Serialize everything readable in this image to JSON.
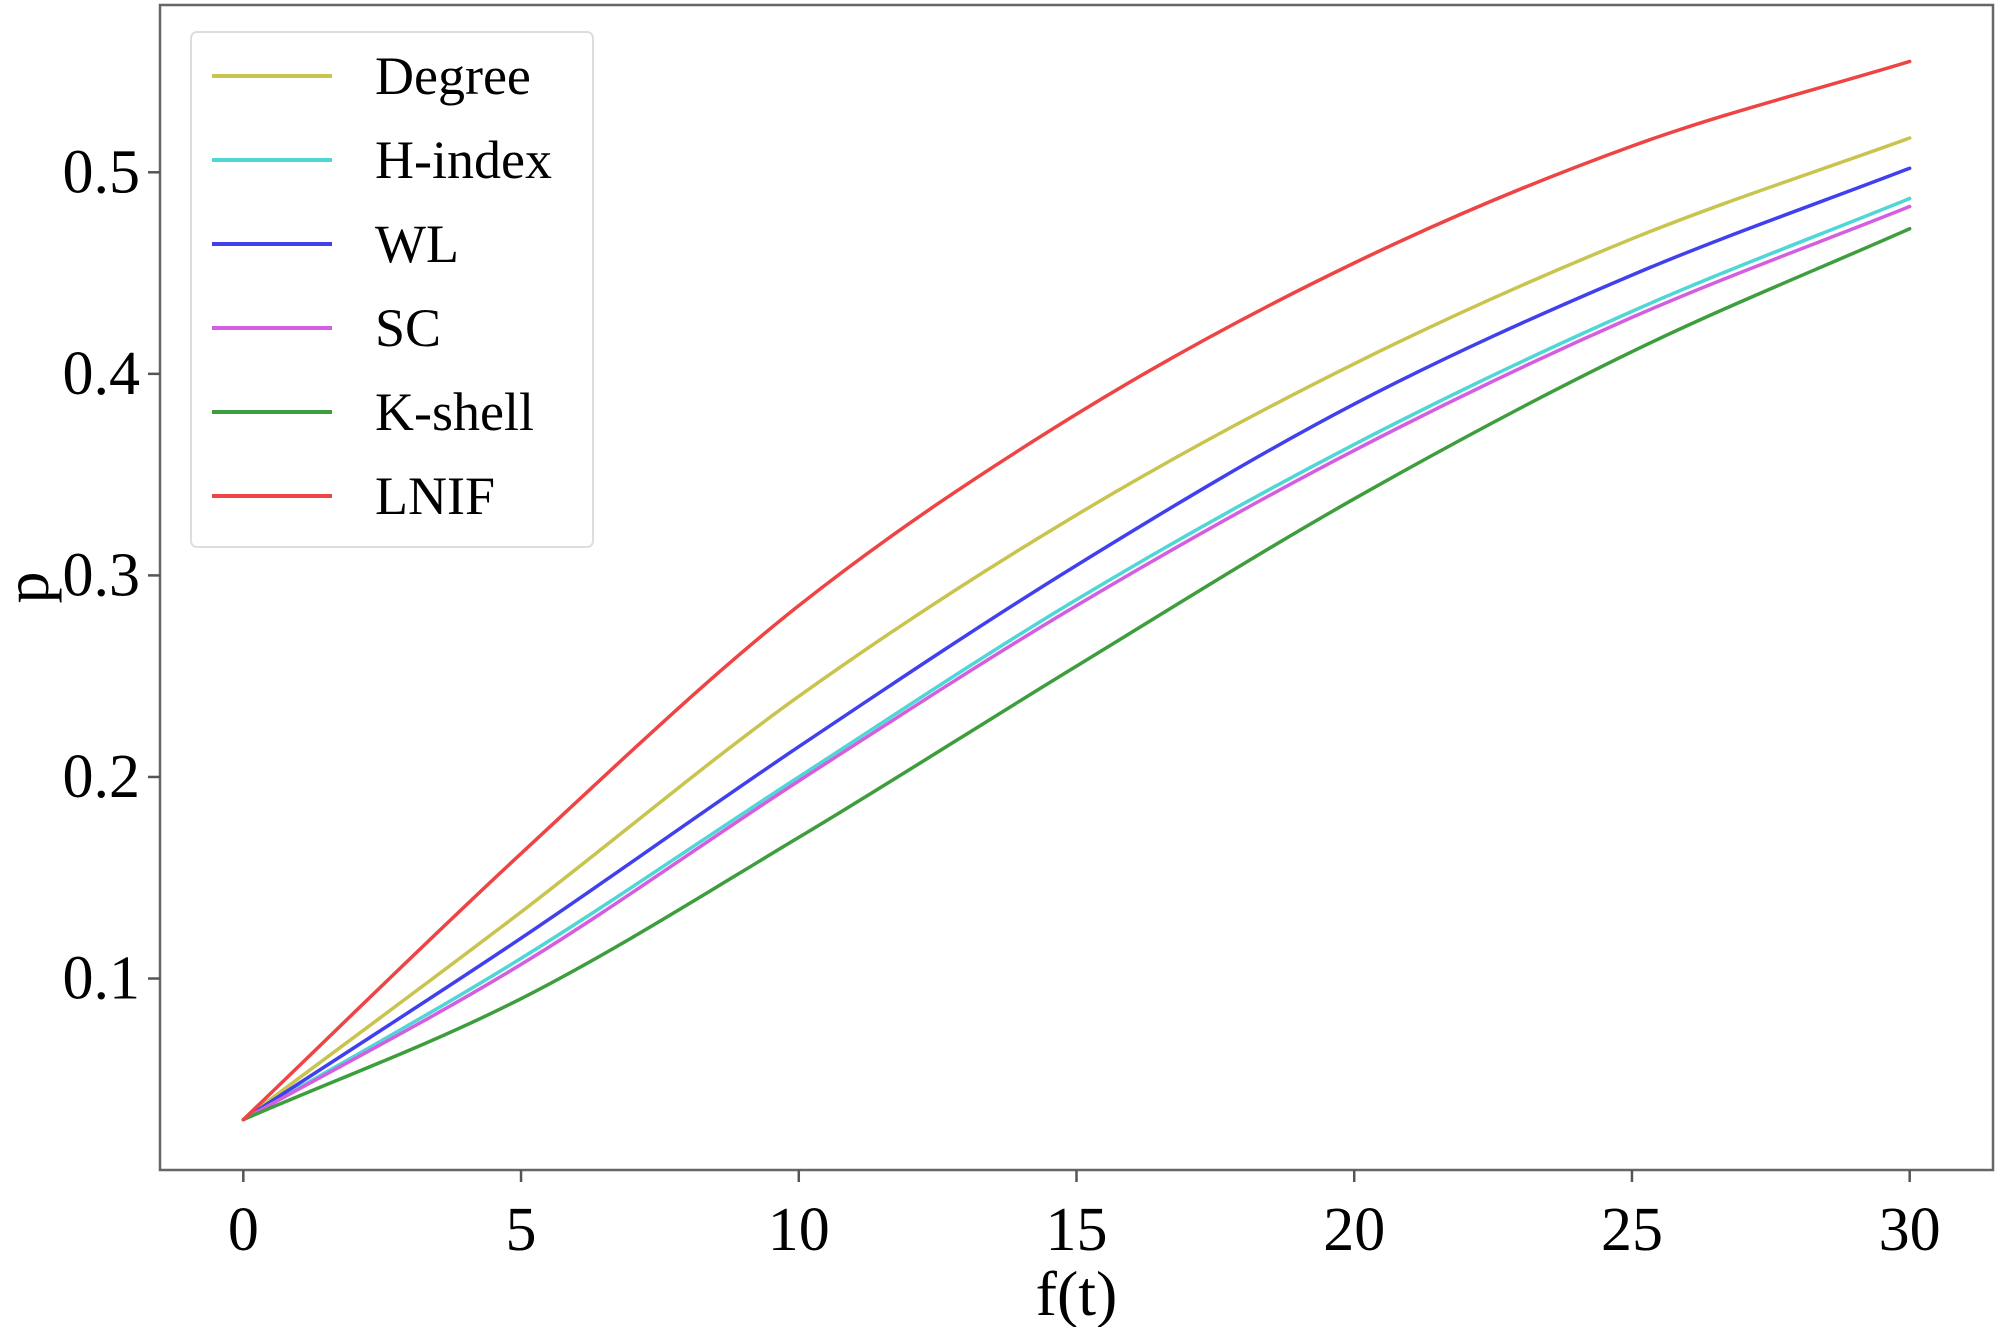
{
  "chart_data": {
    "type": "line",
    "title": "",
    "xlabel": "f(t)",
    "ylabel": "p",
    "xlim": [
      -1.5,
      31.5
    ],
    "ylim": [
      0.005,
      0.583
    ],
    "xticks": [
      0,
      5,
      10,
      15,
      20,
      25,
      30
    ],
    "xtick_labels": [
      "0",
      "5",
      "10",
      "15",
      "20",
      "25",
      "30"
    ],
    "yticks": [
      0.1,
      0.2,
      0.3,
      0.4,
      0.5
    ],
    "ytick_labels": [
      "0.1",
      "0.2",
      "0.3",
      "0.4",
      "0.5"
    ],
    "grid": false,
    "legend_position": "upper-left",
    "x": [
      0,
      5,
      10,
      15,
      20,
      25,
      30
    ],
    "series": [
      {
        "name": "Degree",
        "color": "#c9c44d",
        "values": [
          0.03,
          0.133,
          0.24,
          0.33,
          0.405,
          0.467,
          0.517
        ]
      },
      {
        "name": "H-index",
        "color": "#4fd6d6",
        "values": [
          0.03,
          0.11,
          0.2,
          0.288,
          0.365,
          0.431,
          0.487
        ]
      },
      {
        "name": "WL",
        "color": "#4040ee",
        "values": [
          0.03,
          0.12,
          0.215,
          0.305,
          0.385,
          0.449,
          0.502
        ]
      },
      {
        "name": "SC",
        "color": "#d45ee0",
        "values": [
          0.03,
          0.107,
          0.198,
          0.285,
          0.362,
          0.428,
          0.483
        ]
      },
      {
        "name": "K-shell",
        "color": "#3e9e3e",
        "values": [
          0.03,
          0.09,
          0.17,
          0.255,
          0.338,
          0.411,
          0.472
        ]
      },
      {
        "name": "LNIF",
        "color": "#ee4444",
        "values": [
          0.03,
          0.162,
          0.285,
          0.38,
          0.455,
          0.513,
          0.555
        ]
      }
    ]
  }
}
